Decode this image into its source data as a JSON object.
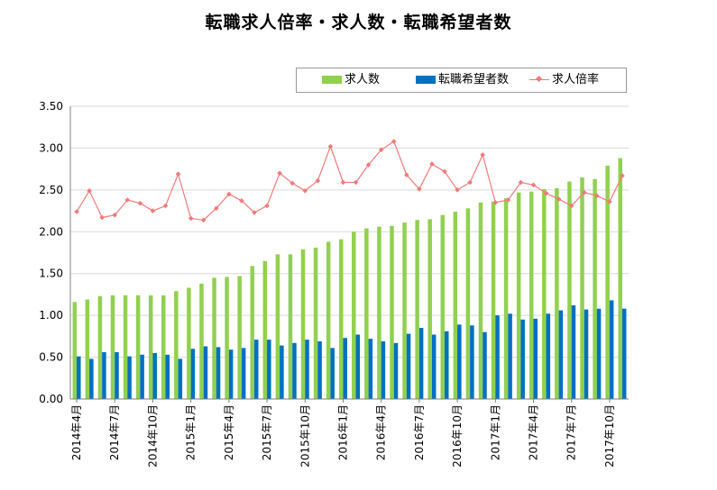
{
  "chart_data": {
    "type": "bar",
    "title": "転職求人倍率・求人数・転職希望者数",
    "xlabel": "",
    "ylabel": "",
    "ylim": [
      0,
      3.5
    ],
    "yticks": [
      "0.00",
      "0.50",
      "1.00",
      "1.50",
      "2.00",
      "2.50",
      "3.00",
      "3.50"
    ],
    "grid": "horizontal",
    "legend_position": "top-right",
    "categories": [
      "2014-04",
      "2014-05",
      "2014-06",
      "2014-07",
      "2014-08",
      "2014-09",
      "2014-10",
      "2014-11",
      "2014-12",
      "2015-01",
      "2015-02",
      "2015-03",
      "2015-04",
      "2015-05",
      "2015-06",
      "2015-07",
      "2015-08",
      "2015-09",
      "2015-10",
      "2015-11",
      "2015-12",
      "2016-01",
      "2016-02",
      "2016-03",
      "2016-04",
      "2016-05",
      "2016-06",
      "2016-07",
      "2016-08",
      "2016-09",
      "2016-10",
      "2016-11",
      "2016-12",
      "2017-01",
      "2017-02",
      "2017-03",
      "2017-04",
      "2017-05",
      "2017-06",
      "2017-07",
      "2017-08",
      "2017-09",
      "2017-10",
      "2017-11"
    ],
    "tick_labels": [
      "2014年4月",
      "2014年7月",
      "2014年10月",
      "2015年1月",
      "2015年4月",
      "2015年7月",
      "2015年10月",
      "2016年1月",
      "2016年4月",
      "2016年7月",
      "2016年10月",
      "2017年1月",
      "2017年4月",
      "2017年7月",
      "2017年10月"
    ],
    "tick_every": 3,
    "series": [
      {
        "name": "求人数",
        "type": "bar",
        "color": "#92d050",
        "values": [
          1.16,
          1.19,
          1.23,
          1.24,
          1.24,
          1.24,
          1.24,
          1.24,
          1.29,
          1.33,
          1.38,
          1.45,
          1.46,
          1.47,
          1.59,
          1.65,
          1.73,
          1.73,
          1.79,
          1.81,
          1.88,
          1.91,
          2.0,
          2.04,
          2.06,
          2.07,
          2.11,
          2.14,
          2.15,
          2.2,
          2.24,
          2.28,
          2.35,
          2.36,
          2.4,
          2.47,
          2.48,
          2.51,
          2.52,
          2.6,
          2.65,
          2.63,
          2.79,
          2.88
        ]
      },
      {
        "name": "転職希望者数",
        "type": "bar",
        "color": "#0070c0",
        "values": [
          0.51,
          0.48,
          0.56,
          0.56,
          0.51,
          0.53,
          0.55,
          0.53,
          0.48,
          0.6,
          0.63,
          0.62,
          0.59,
          0.61,
          0.71,
          0.71,
          0.64,
          0.67,
          0.71,
          0.69,
          0.61,
          0.73,
          0.77,
          0.72,
          0.69,
          0.67,
          0.78,
          0.85,
          0.77,
          0.81,
          0.89,
          0.88,
          0.8,
          1.0,
          1.02,
          0.95,
          0.96,
          1.02,
          1.06,
          1.12,
          1.07,
          1.08,
          1.18,
          1.08
        ]
      },
      {
        "name": "求人倍率",
        "type": "line",
        "color": "#f07a7a",
        "values": [
          2.24,
          2.49,
          2.17,
          2.2,
          2.38,
          2.34,
          2.25,
          2.31,
          2.69,
          2.16,
          2.14,
          2.28,
          2.45,
          2.37,
          2.23,
          2.31,
          2.7,
          2.58,
          2.49,
          2.61,
          3.02,
          2.59,
          2.59,
          2.8,
          2.98,
          3.08,
          2.68,
          2.51,
          2.81,
          2.72,
          2.5,
          2.59,
          2.92,
          2.35,
          2.38,
          2.59,
          2.56,
          2.46,
          2.39,
          2.31,
          2.47,
          2.43,
          2.36,
          2.67
        ]
      }
    ]
  }
}
